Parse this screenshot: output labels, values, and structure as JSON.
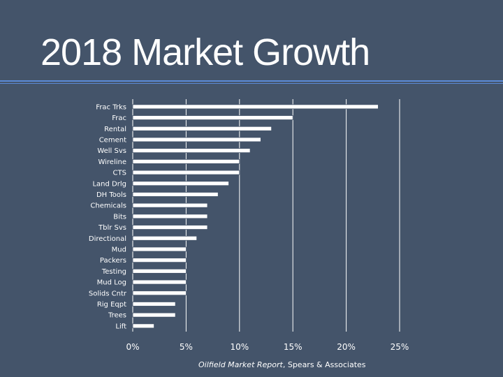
{
  "title": "2018 Market Growth",
  "source": {
    "italic": "Oilfield Market Report",
    "rest": ", Spears & Associates"
  },
  "colors": {
    "background": "#44546a",
    "bar_fill": "#ffffff",
    "bar_stroke": "#44546a",
    "gridline": "#ffffff",
    "rule": "#5b8ad6",
    "text": "#ffffff"
  },
  "chart_data": {
    "type": "bar",
    "orientation": "horizontal",
    "categories": [
      "Frac Trks",
      "Frac",
      "Rental",
      "Cement",
      "Well Svs",
      "Wireline",
      "CTS",
      "Land Drlg",
      "DH Tools",
      "Chemicals",
      "Bits",
      "Tblr Svs",
      "Directional",
      "Mud",
      "Packers",
      "Testing",
      "Mud Log",
      "Solids Cntr",
      "Rig Eqpt",
      "Trees",
      "Lift"
    ],
    "values": [
      0.23,
      0.15,
      0.13,
      0.12,
      0.11,
      0.1,
      0.1,
      0.09,
      0.08,
      0.07,
      0.07,
      0.07,
      0.06,
      0.05,
      0.05,
      0.05,
      0.05,
      0.05,
      0.04,
      0.04,
      0.02
    ],
    "xlim": [
      0,
      0.25
    ],
    "xticks": [
      0,
      0.05,
      0.1,
      0.15,
      0.2,
      0.25
    ],
    "xtick_labels": [
      "0%",
      "5%",
      "10%",
      "15%",
      "20%",
      "25%"
    ],
    "grid": "vertical",
    "legend": "none"
  }
}
